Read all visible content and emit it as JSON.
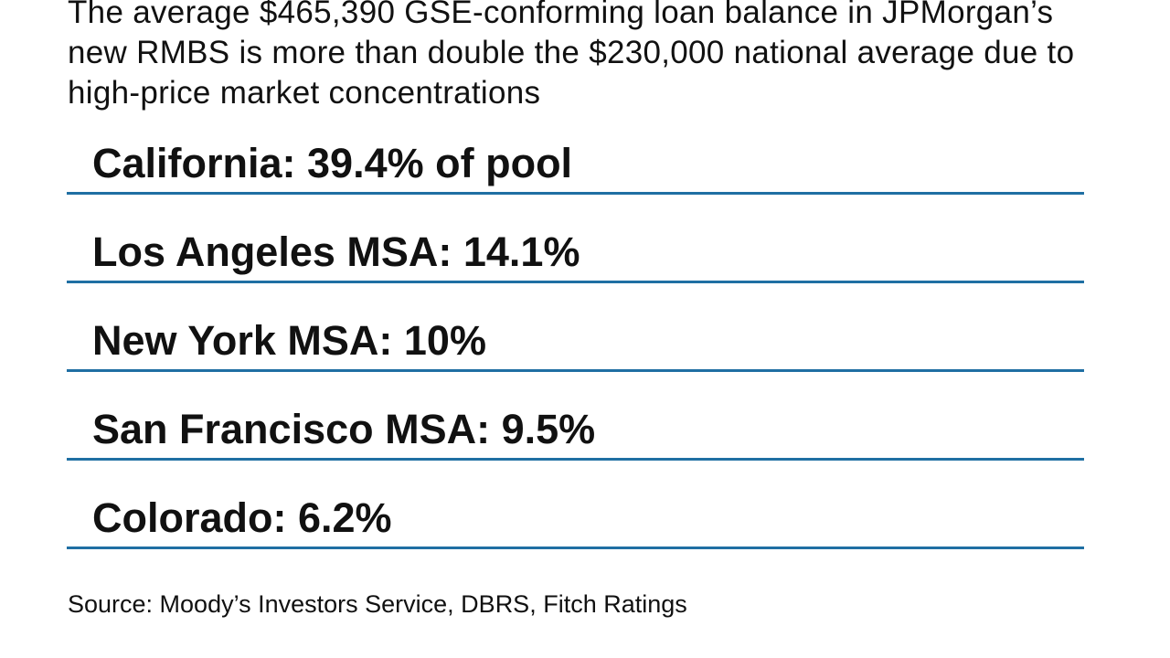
{
  "headline": "The average $465,390 GSE-conforming loan balance in JPMorgan’s new RMBS is more than double the $230,000 national average due to high-price market concentrations",
  "source": "Source: Moody’s Investors Service, DBRS, Fitch Ratings",
  "accent_color": "#1f6fa3",
  "chart_data": {
    "type": "table",
    "title": "The average $465,390 GSE-conforming loan balance in JPMorgan’s new RMBS is more than double the $230,000 national average due to high-price market concentrations",
    "rows": [
      {
        "label": "California: 39.4% of pool",
        "region": "California",
        "value": 39.4
      },
      {
        "label": "Los Angeles MSA: 14.1%",
        "region": "Los Angeles MSA",
        "value": 14.1
      },
      {
        "label": "New York MSA: 10%",
        "region": "New York MSA",
        "value": 10
      },
      {
        "label": "San Francisco MSA: 9.5%",
        "region": "San Francisco MSA",
        "value": 9.5
      },
      {
        "label": "Colorado: 6.2%",
        "region": "Colorado",
        "value": 6.2
      }
    ],
    "unit": "% of pool"
  }
}
